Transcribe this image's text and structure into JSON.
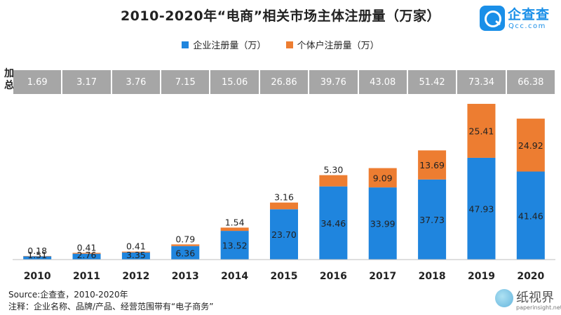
{
  "title": "2010-2020年“电商”相关市场主体注册量（万家）",
  "logo": {
    "name": "企查查",
    "url": "Qcc.com"
  },
  "totals_label": "加总",
  "footer": {
    "source": "Source:企查查，2010-2020年",
    "note": "注释：企业名称、品牌/产品、经营范围带有“电子商务”"
  },
  "watermark": {
    "name": "纸视界",
    "url": "paperinsight.net"
  },
  "colors": {
    "enterprise": "#1f85de",
    "individual": "#ed7d31",
    "totals_bg": "#a6a6a6"
  },
  "chart_data": {
    "type": "bar",
    "stacked": true,
    "categories": [
      "2010",
      "2011",
      "2012",
      "2013",
      "2014",
      "2015",
      "2016",
      "2017",
      "2018",
      "2019",
      "2020"
    ],
    "series": [
      {
        "name": "企业注册量（万）",
        "values": [
          1.51,
          2.76,
          3.35,
          6.36,
          13.52,
          23.7,
          34.46,
          33.99,
          37.73,
          47.93,
          41.46
        ]
      },
      {
        "name": "个体户注册量（万）",
        "values": [
          0.18,
          0.41,
          0.41,
          0.79,
          1.54,
          3.16,
          5.3,
          9.09,
          13.69,
          25.41,
          24.92
        ]
      }
    ],
    "totals": [
      1.69,
      3.17,
      3.76,
      7.15,
      15.06,
      26.86,
      39.76,
      43.08,
      51.42,
      73.34,
      66.38
    ],
    "value_labels": {
      "enterprise": [
        "1.51",
        "2.76",
        "3.35",
        "6.36",
        "13.52",
        "23.70",
        "34.46",
        "33.99",
        "37.73",
        "47.93",
        "41.46"
      ],
      "individual": [
        "0.18",
        "0.41",
        "0.41",
        "0.79",
        "1.54",
        "3.16",
        "5.30",
        "9.09",
        "13.69",
        "25.41",
        "24.92"
      ],
      "totals": [
        "1.69",
        "3.17",
        "3.76",
        "7.15",
        "15.06",
        "26.86",
        "39.76",
        "43.08",
        "51.42",
        "73.34",
        "66.38"
      ]
    },
    "ylim": [
      0,
      75
    ],
    "legend_position": "top-center",
    "grid": false
  }
}
